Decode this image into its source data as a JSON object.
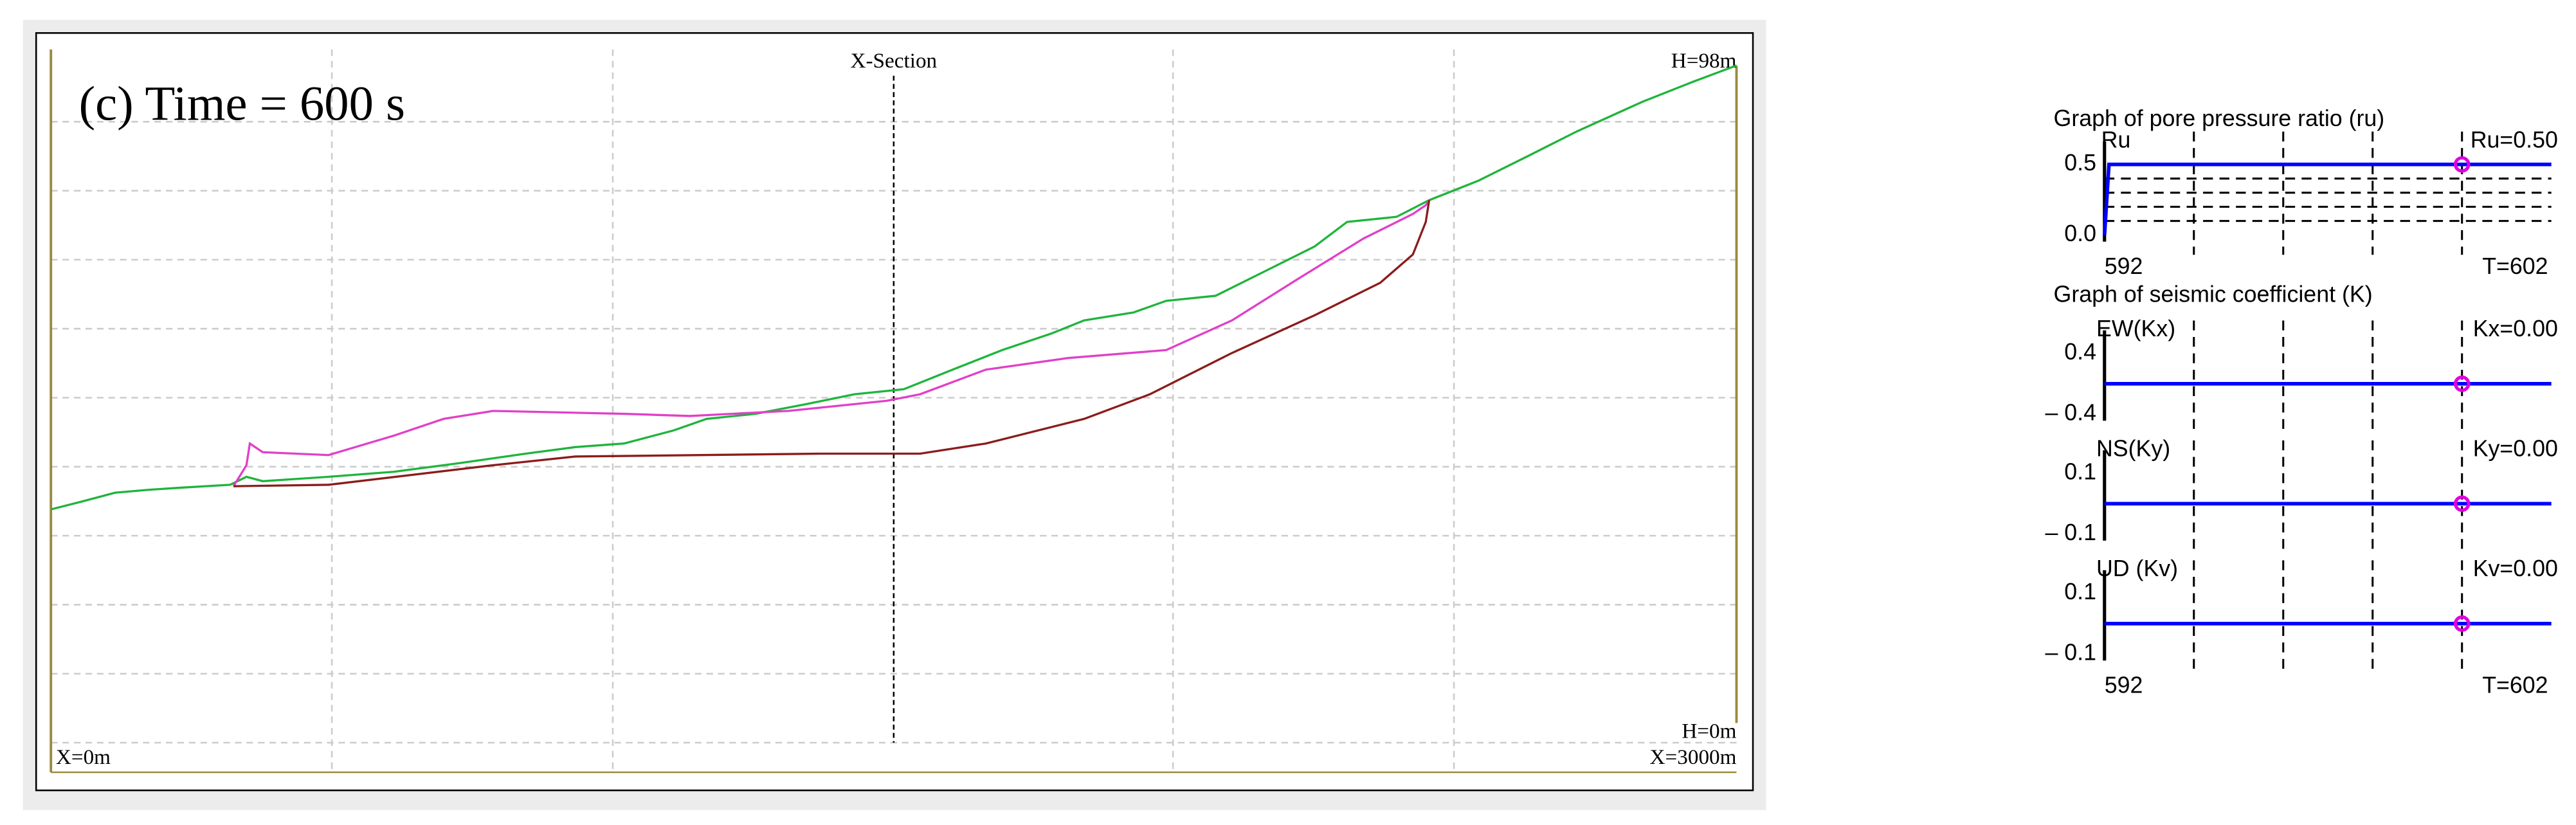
{
  "panel_title": "Graph of seismic coefficient (K)",
  "chart_data": [
    {
      "type": "line",
      "title": "X-Section",
      "annotation": "(c) Time = 600 s",
      "xlim": [
        0,
        3000
      ],
      "ylim": [
        0,
        98
      ],
      "xticks": [
        {
          "value": 0,
          "label": "X=0m"
        },
        {
          "value": 3000,
          "label": "X=3000m"
        }
      ],
      "yticks": [
        {
          "value": 0,
          "label": "H=0m"
        },
        {
          "value": 98,
          "label": "H=98m"
        }
      ],
      "section_x": 1500,
      "series": [
        {
          "color": "#1fb43c",
          "x": [
            0,
            56,
            114,
            173,
            231,
            319,
            348,
            377,
            494,
            611,
            728,
            845,
            933,
            1020,
            1108,
            1167,
            1254,
            1342,
            1430,
            1518,
            1605,
            1693,
            1781,
            1839,
            1927,
            1985,
            2073,
            2161,
            2249,
            2307,
            2395,
            2453,
            2541,
            2629,
            2716,
            2833,
            2921,
            3000
          ],
          "values": [
            36.3,
            37.4,
            38.6,
            39.0,
            39.3,
            39.7,
            40.8,
            40.2,
            40.8,
            41.5,
            42.7,
            44.0,
            44.9,
            45.4,
            47.2,
            48.8,
            49.5,
            50.8,
            52.2,
            52.9,
            55.6,
            58.3,
            60.6,
            62.4,
            63.5,
            65.1,
            65.8,
            69.2,
            72.6,
            76.0,
            76.7,
            79.0,
            81.7,
            85.1,
            88.5,
            92.6,
            95.3,
            97.6
          ]
        },
        {
          "color": "#e040c8",
          "x": [
            325,
            348,
            354,
            377,
            494,
            611,
            699,
            787,
            1020,
            1137,
            1313,
            1488,
            1547,
            1664,
            1810,
            1985,
            2102,
            2219,
            2336,
            2424,
            2447,
            2453
          ],
          "values": [
            39.5,
            42.4,
            45.4,
            44.2,
            43.8,
            46.5,
            48.8,
            49.9,
            49.5,
            49.2,
            49.9,
            51.3,
            52.2,
            55.6,
            57.2,
            58.3,
            62.4,
            68.1,
            73.7,
            77.1,
            78.3,
            79.0
          ]
        },
        {
          "color": "#8b1c1c",
          "x": [
            325,
            494,
            787,
            933,
            1371,
            1547,
            1664,
            1839,
            1956,
            2102,
            2249,
            2366,
            2424,
            2447,
            2453
          ],
          "values": [
            39.5,
            39.7,
            42.4,
            43.6,
            44.0,
            44.0,
            45.4,
            48.8,
            52.2,
            57.9,
            63.1,
            67.6,
            71.5,
            76.0,
            79.0
          ]
        }
      ]
    },
    {
      "type": "line",
      "title": "Graph of pore pressure ratio (ru)",
      "y_label": "Ru",
      "xlim": [
        592,
        602
      ],
      "ylim": [
        0,
        0.5
      ],
      "xticks": [
        592,
        {
          "value": 602,
          "label": "T=602"
        }
      ],
      "yticks": [
        {
          "value": 0.5,
          "label": "0.5"
        },
        {
          "value": 0,
          "label": "0.0"
        }
      ],
      "xgrid": [
        594,
        596,
        598,
        600
      ],
      "ygrid": [
        0.1,
        0.2,
        0.3,
        0.4
      ],
      "series": [
        {
          "color": "#0000ff",
          "x": [
            592,
            592.1,
            602
          ],
          "values": [
            0,
            0.5,
            0.5
          ]
        }
      ],
      "marker": {
        "x": 600,
        "value": 0.5,
        "label": "Ru=0.50"
      }
    },
    {
      "type": "line",
      "y_label": "EW(Kx)",
      "xlim": [
        592,
        602
      ],
      "ylim": [
        -0.4,
        0.4
      ],
      "yticks": [
        {
          "value": 0.4,
          "label": "0.4"
        },
        {
          "value": -0.4,
          "label": "– 0.4"
        }
      ],
      "xgrid": [
        594,
        596,
        598,
        600
      ],
      "series": [
        {
          "color": "#0000ff",
          "x": [
            592,
            602
          ],
          "values": [
            0,
            0
          ]
        }
      ],
      "marker": {
        "x": 600,
        "value": 0,
        "label": "Kx=0.00"
      }
    },
    {
      "type": "line",
      "y_label": "NS(Ky)",
      "xlim": [
        592,
        602
      ],
      "ylim": [
        -0.1,
        0.1
      ],
      "yticks": [
        {
          "value": 0.1,
          "label": "0.1"
        },
        {
          "value": -0.1,
          "label": "– 0.1"
        }
      ],
      "xgrid": [
        594,
        596,
        598,
        600
      ],
      "series": [
        {
          "color": "#0000ff",
          "x": [
            592,
            602
          ],
          "values": [
            0,
            0
          ]
        }
      ],
      "marker": {
        "x": 600,
        "value": 0,
        "label": "Ky=0.00"
      }
    },
    {
      "type": "line",
      "y_label": "UD (Kv)",
      "xlim": [
        592,
        602
      ],
      "ylim": [
        -0.1,
        0.1
      ],
      "xticks": [
        592,
        {
          "value": 602,
          "label": "T=602"
        }
      ],
      "yticks": [
        {
          "value": 0.1,
          "label": "0.1"
        },
        {
          "value": -0.1,
          "label": "– 0.1"
        }
      ],
      "xgrid": [
        594,
        596,
        598,
        600
      ],
      "series": [
        {
          "color": "#0000ff",
          "x": [
            592,
            602
          ],
          "values": [
            0,
            0
          ]
        }
      ],
      "marker": {
        "x": 600,
        "value": 0,
        "label": "Kv=0.00"
      }
    }
  ]
}
